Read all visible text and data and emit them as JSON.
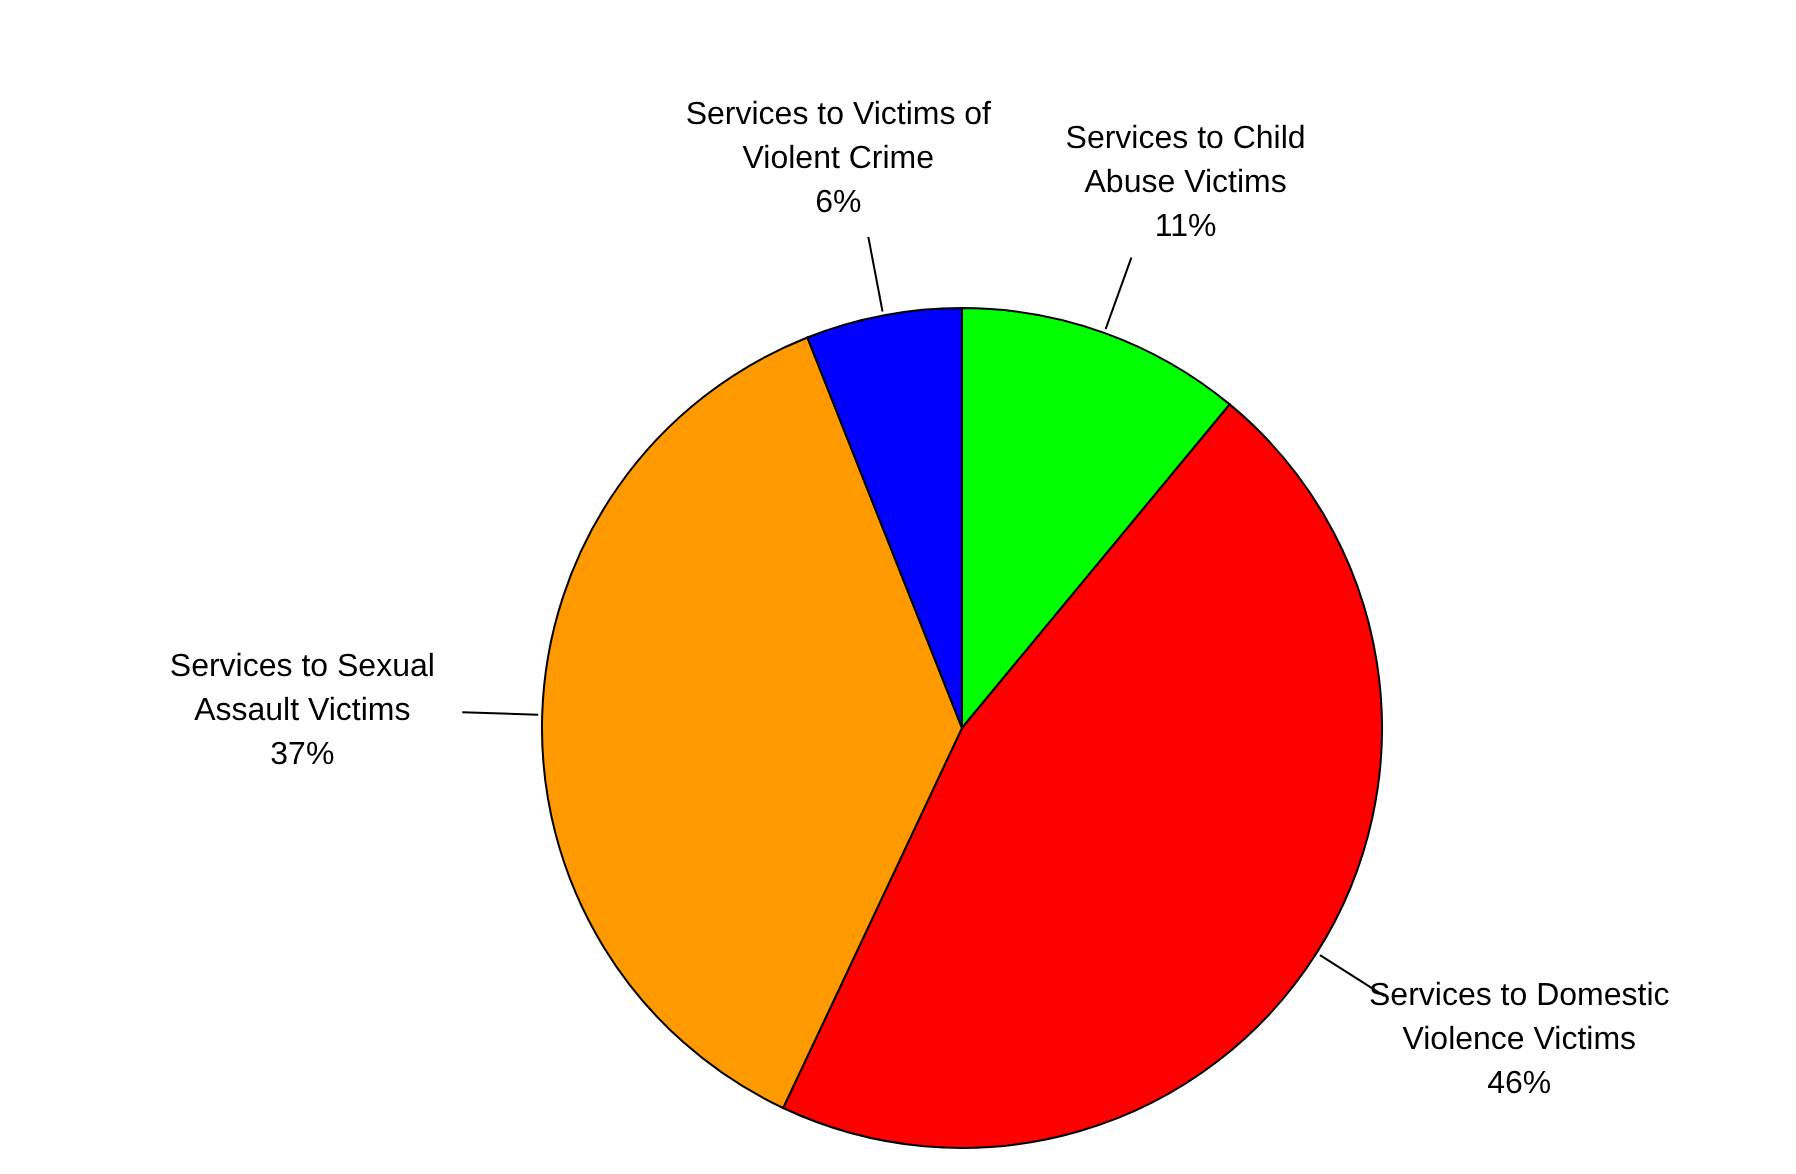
{
  "chart_data": {
    "type": "pie",
    "categories": [
      "Services to Child Abuse Victims",
      "Services to Domestic Violence Victims",
      "Services to Sexual Assault Victims",
      "Services to Victims of Violent Crime"
    ],
    "values": [
      11,
      46,
      37,
      6
    ],
    "value_labels": [
      "11%",
      "46%",
      "37%",
      "6%"
    ],
    "colors": [
      "#00ff00",
      "#ff0000",
      "#ff9900",
      "#0000ff"
    ]
  }
}
